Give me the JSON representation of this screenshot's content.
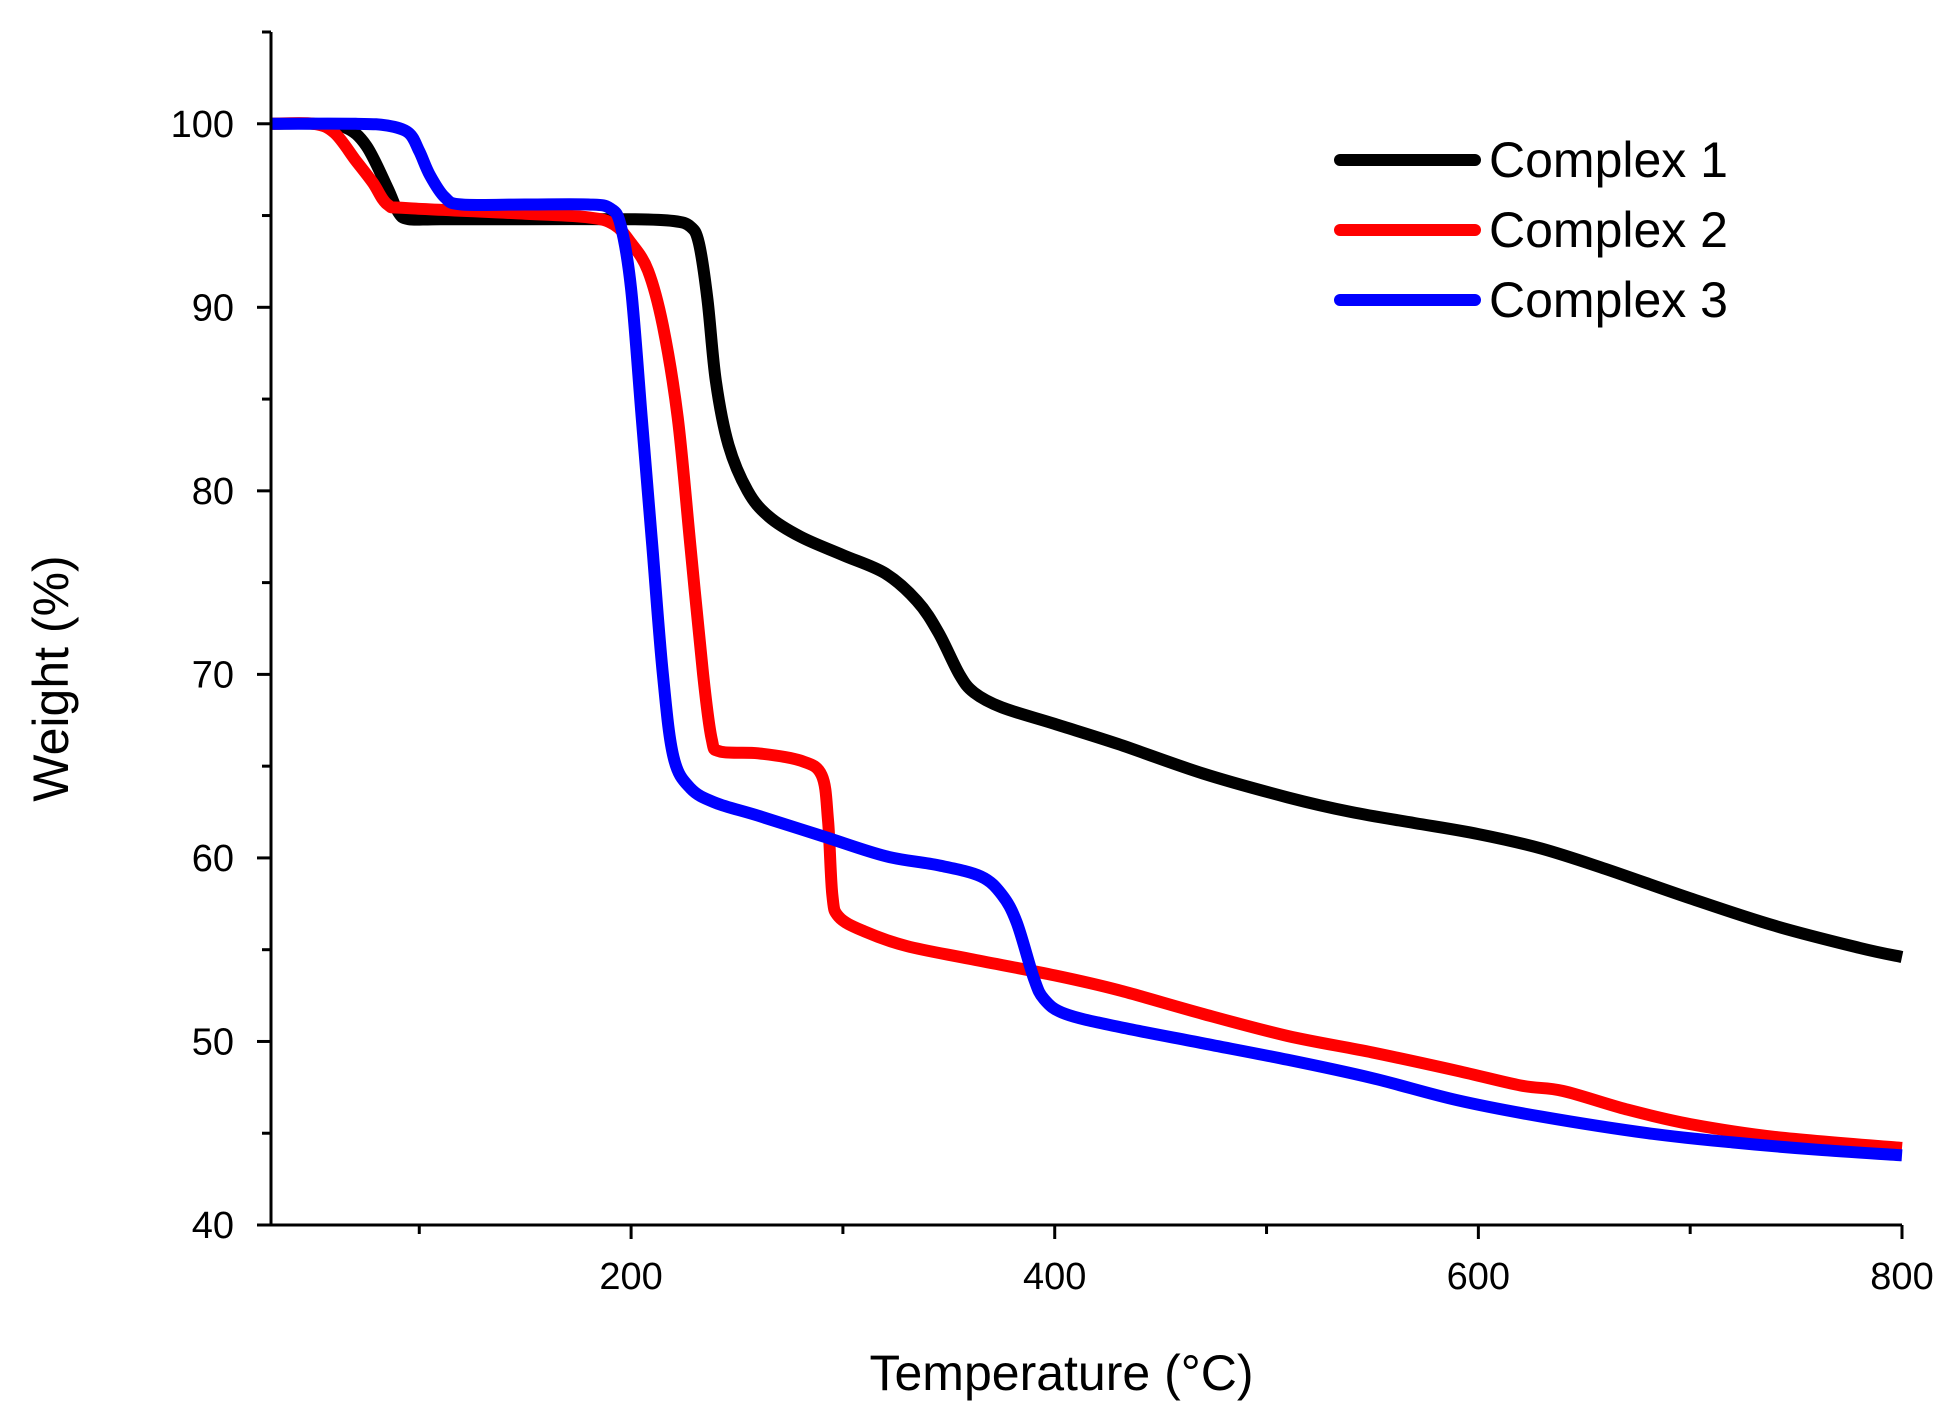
{
  "chart_data": {
    "type": "line",
    "title": "",
    "xlabel": "Temperature (°C)",
    "ylabel": "Weight (%)",
    "xlim": [
      30,
      800
    ],
    "ylim": [
      40,
      105
    ],
    "x_major_ticks": [
      200,
      400,
      600,
      800
    ],
    "x_minor_ticks": [
      100,
      300,
      500,
      700
    ],
    "y_major_ticks": [
      40,
      50,
      60,
      70,
      80,
      90,
      100
    ],
    "y_minor_ticks": [
      45,
      55,
      65,
      75,
      85,
      95,
      105
    ],
    "legend_position": "top-right",
    "series": [
      {
        "name": "Complex 1",
        "color": "#000000",
        "points": [
          [
            30,
            100
          ],
          [
            50,
            100
          ],
          [
            65,
            99.8
          ],
          [
            75,
            98.8
          ],
          [
            85,
            96.5
          ],
          [
            90,
            95.2
          ],
          [
            95,
            94.8
          ],
          [
            110,
            94.8
          ],
          [
            150,
            94.8
          ],
          [
            200,
            94.8
          ],
          [
            220,
            94.7
          ],
          [
            228,
            94.4
          ],
          [
            232,
            93.5
          ],
          [
            236,
            90.5
          ],
          [
            240,
            86
          ],
          [
            246,
            82.5
          ],
          [
            255,
            80
          ],
          [
            265,
            78.6
          ],
          [
            280,
            77.5
          ],
          [
            300,
            76.5
          ],
          [
            320,
            75.5
          ],
          [
            335,
            74
          ],
          [
            345,
            72.3
          ],
          [
            355,
            70
          ],
          [
            362,
            69
          ],
          [
            375,
            68.2
          ],
          [
            400,
            67.3
          ],
          [
            430,
            66.2
          ],
          [
            470,
            64.6
          ],
          [
            510,
            63.3
          ],
          [
            540,
            62.5
          ],
          [
            570,
            61.9
          ],
          [
            600,
            61.3
          ],
          [
            630,
            60.5
          ],
          [
            660,
            59.4
          ],
          [
            700,
            57.8
          ],
          [
            740,
            56.3
          ],
          [
            780,
            55.1
          ],
          [
            800,
            54.6
          ]
        ]
      },
      {
        "name": "Complex 2",
        "color": "#ff0000",
        "points": [
          [
            30,
            100
          ],
          [
            50,
            100
          ],
          [
            60,
            99.5
          ],
          [
            70,
            98
          ],
          [
            78,
            96.8
          ],
          [
            85,
            95.6
          ],
          [
            95,
            95.4
          ],
          [
            150,
            95.1
          ],
          [
            180,
            94.9
          ],
          [
            192,
            94.5
          ],
          [
            200,
            93.5
          ],
          [
            208,
            92
          ],
          [
            215,
            89
          ],
          [
            222,
            84
          ],
          [
            228,
            77
          ],
          [
            234,
            70
          ],
          [
            238,
            66.5
          ],
          [
            242,
            65.8
          ],
          [
            260,
            65.7
          ],
          [
            280,
            65.3
          ],
          [
            290,
            64.5
          ],
          [
            293,
            62
          ],
          [
            295,
            58
          ],
          [
            298,
            56.8
          ],
          [
            310,
            56
          ],
          [
            330,
            55.2
          ],
          [
            360,
            54.5
          ],
          [
            400,
            53.6
          ],
          [
            430,
            52.8
          ],
          [
            470,
            51.5
          ],
          [
            510,
            50.3
          ],
          [
            550,
            49.4
          ],
          [
            590,
            48.4
          ],
          [
            620,
            47.6
          ],
          [
            640,
            47.3
          ],
          [
            670,
            46.3
          ],
          [
            700,
            45.5
          ],
          [
            740,
            44.8
          ],
          [
            800,
            44.2
          ]
        ]
      },
      {
        "name": "Complex 3",
        "color": "#0000ff",
        "points": [
          [
            30,
            100
          ],
          [
            70,
            100
          ],
          [
            85,
            99.9
          ],
          [
            95,
            99.5
          ],
          [
            100,
            98.5
          ],
          [
            105,
            97.2
          ],
          [
            112,
            96
          ],
          [
            120,
            95.6
          ],
          [
            150,
            95.6
          ],
          [
            180,
            95.6
          ],
          [
            190,
            95.4
          ],
          [
            195,
            94.5
          ],
          [
            200,
            91
          ],
          [
            205,
            84
          ],
          [
            210,
            77
          ],
          [
            215,
            70
          ],
          [
            220,
            65.5
          ],
          [
            228,
            63.8
          ],
          [
            240,
            63
          ],
          [
            260,
            62.3
          ],
          [
            290,
            61.2
          ],
          [
            320,
            60.1
          ],
          [
            345,
            59.6
          ],
          [
            365,
            59
          ],
          [
            375,
            58
          ],
          [
            382,
            56.5
          ],
          [
            390,
            53.5
          ],
          [
            395,
            52.3
          ],
          [
            405,
            51.5
          ],
          [
            430,
            50.8
          ],
          [
            470,
            49.9
          ],
          [
            510,
            49
          ],
          [
            550,
            48
          ],
          [
            590,
            46.8
          ],
          [
            630,
            45.9
          ],
          [
            680,
            45
          ],
          [
            720,
            44.5
          ],
          [
            760,
            44.1
          ],
          [
            800,
            43.8
          ]
        ]
      }
    ]
  }
}
